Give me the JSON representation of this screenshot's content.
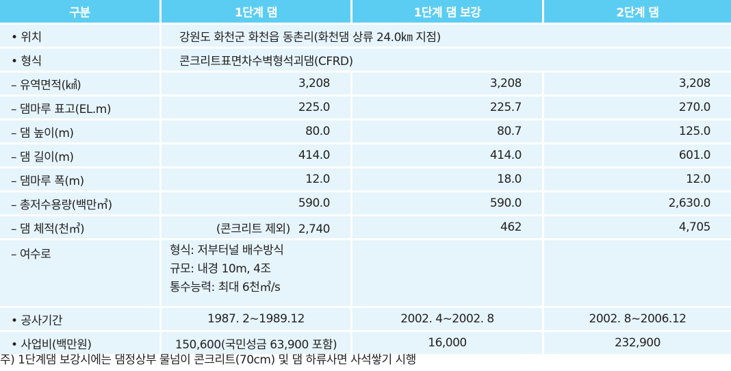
{
  "header": {
    "col0": "구분",
    "col1": "1단계 댐",
    "col2": "1단계 댐 보강",
    "col3": "2단계 댐"
  },
  "rows": {
    "location": {
      "label": "• 위치",
      "value": "강원도 화천군 화천읍 동촌리(화천댐 상류 24.0㎞ 지점)"
    },
    "type": {
      "label": "• 형식",
      "value": "콘크리트표면차수벽형석괴댐(CFRD)"
    },
    "basin_area": {
      "label": "– 유역면적(㎢)",
      "v1": "3,208",
      "v2": "3,208",
      "v3": "3,208"
    },
    "crest_elevation": {
      "label": "– 댐마루 표고(EL.m)",
      "v1": "225.0",
      "v2": "225.7",
      "v3": "270.0"
    },
    "dam_height": {
      "label": "– 댐 높이(m)",
      "v1": "80.0",
      "v2": "80.7",
      "v3": "125.0"
    },
    "dam_length": {
      "label": "– 댐 길이(m)",
      "v1": "414.0",
      "v2": "414.0",
      "v3": "601.0"
    },
    "crest_width": {
      "label": "– 댐마루 폭(m)",
      "v1": "12.0",
      "v2": "18.0",
      "v3": "12.0"
    },
    "storage": {
      "label": "– 총저수용량(백만㎥)",
      "v1": "590.0",
      "v2": "590.0",
      "v3": "2,630.0"
    },
    "dam_volume": {
      "label": "– 댐 체적(천㎥)",
      "note": "(콘크리트 제외)",
      "v1": "2,740",
      "v2": "462",
      "v3": "4,705"
    },
    "spillway": {
      "label": "– 여수로",
      "line1": "형식: 저부터널 배수방식",
      "line2": "규모: 내경 10m, 4조",
      "line3": "통수능력: 최대 6천㎥/s"
    },
    "construction_period": {
      "label": "• 공사기간",
      "v1": "1987. 2~1989.12",
      "v2": "2002. 4~2002. 8",
      "v3": "2002. 8~2006.12"
    },
    "project_cost": {
      "label": "• 사업비(백만원)",
      "v1": "150,600(국민성금 63,900 포함)",
      "v2": "16,000",
      "v3": "232,900"
    }
  },
  "footnote": "주) 1단계댐 보강시에는 댐정상부 물넘이 콘크리트(70cm) 및 댐 하류사면 사석쌓기 시행",
  "colors": {
    "header_bg": "#5ccdf2",
    "cell_bg": "#e6f4fb",
    "header_text": "#ffffff"
  }
}
